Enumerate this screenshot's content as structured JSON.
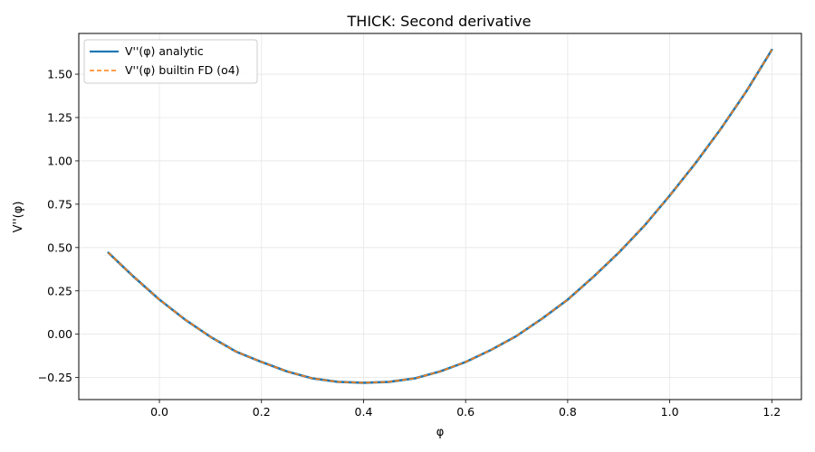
{
  "chart_data": {
    "type": "line",
    "title": "THICK: Second derivative",
    "xlabel": "φ",
    "ylabel": "V''(φ)",
    "xlim": [
      -0.158,
      1.258
    ],
    "ylim": [
      -0.377,
      1.735
    ],
    "xticks": [
      0.0,
      0.2,
      0.4,
      0.6,
      0.8,
      1.0,
      1.2
    ],
    "xtick_labels": [
      "0.0",
      "0.2",
      "0.4",
      "0.6",
      "0.8",
      "1.0",
      "1.2"
    ],
    "yticks": [
      -0.25,
      0.0,
      0.25,
      0.5,
      0.75,
      1.0,
      1.25,
      1.5
    ],
    "ytick_labels": [
      "−0.25",
      "0.00",
      "0.25",
      "0.50",
      "0.75",
      "1.00",
      "1.25",
      "1.50"
    ],
    "grid": true,
    "legend_position": "top-left",
    "series": [
      {
        "name": "V''(φ) analytic",
        "color": "#1f77b4",
        "style": "solid",
        "x": [
          -0.1,
          -0.05,
          0.0,
          0.05,
          0.1,
          0.15,
          0.2,
          0.25,
          0.3,
          0.35,
          0.4,
          0.45,
          0.5,
          0.55,
          0.6,
          0.65,
          0.7,
          0.75,
          0.8,
          0.85,
          0.9,
          0.95,
          1.0,
          1.05,
          1.1,
          1.15,
          1.2
        ],
        "y": [
          0.47,
          0.33,
          0.2,
          0.085,
          -0.015,
          -0.1,
          -0.16,
          -0.215,
          -0.255,
          -0.275,
          -0.28,
          -0.275,
          -0.255,
          -0.215,
          -0.16,
          -0.09,
          -0.01,
          0.09,
          0.2,
          0.33,
          0.47,
          0.625,
          0.8,
          0.985,
          1.185,
          1.4,
          1.64
        ]
      },
      {
        "name": "V''(φ) builtin FD (o4)",
        "color": "#ff7f0e",
        "style": "dashed",
        "x": [
          -0.1,
          -0.05,
          0.0,
          0.05,
          0.1,
          0.15,
          0.2,
          0.25,
          0.3,
          0.35,
          0.4,
          0.45,
          0.5,
          0.55,
          0.6,
          0.65,
          0.7,
          0.75,
          0.8,
          0.85,
          0.9,
          0.95,
          1.0,
          1.05,
          1.1,
          1.15,
          1.2
        ],
        "y": [
          0.47,
          0.33,
          0.2,
          0.085,
          -0.015,
          -0.1,
          -0.16,
          -0.215,
          -0.255,
          -0.275,
          -0.28,
          -0.275,
          -0.255,
          -0.215,
          -0.16,
          -0.09,
          -0.01,
          0.09,
          0.2,
          0.33,
          0.47,
          0.625,
          0.8,
          0.985,
          1.185,
          1.4,
          1.64
        ]
      }
    ]
  }
}
